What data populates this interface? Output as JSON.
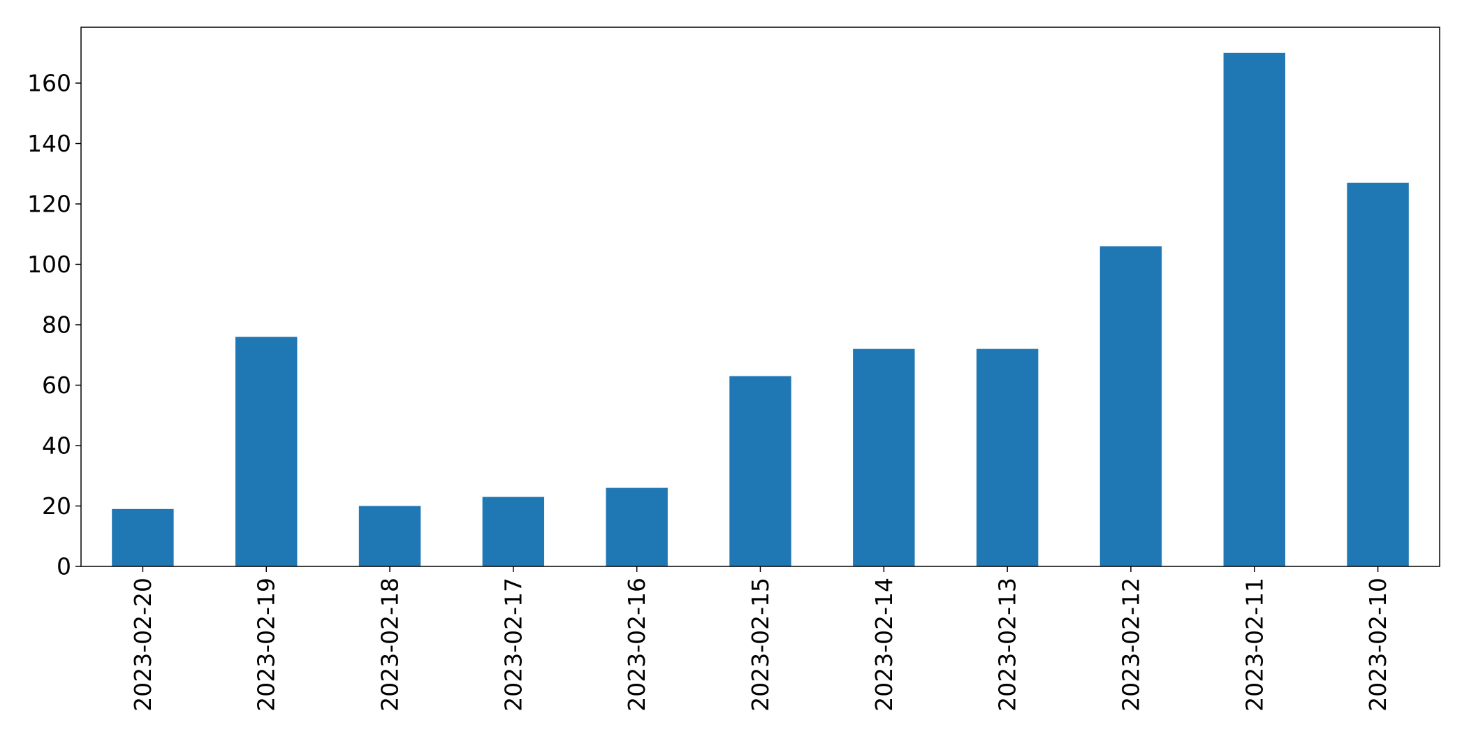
{
  "chart_data": {
    "type": "bar",
    "categories": [
      "2023-02-20",
      "2023-02-19",
      "2023-02-18",
      "2023-02-17",
      "2023-02-16",
      "2023-02-15",
      "2023-02-14",
      "2023-02-13",
      "2023-02-12",
      "2023-02-11",
      "2023-02-10"
    ],
    "values": [
      19,
      76,
      20,
      23,
      26,
      63,
      72,
      72,
      106,
      170,
      127
    ],
    "title": "",
    "xlabel": "",
    "ylabel": "",
    "ylim": [
      0,
      178.5
    ],
    "yticks": [
      0,
      20,
      40,
      60,
      80,
      100,
      120,
      140,
      160
    ],
    "grid": false,
    "legend": "none",
    "bar_color": "#1f77b4",
    "x_tick_rotation": "vertical"
  }
}
